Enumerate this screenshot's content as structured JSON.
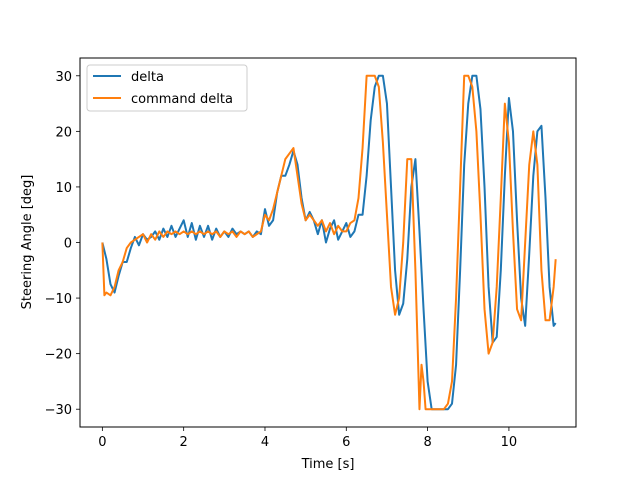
{
  "chart_data": {
    "type": "line",
    "title": "",
    "xlabel": "Time [s]",
    "ylabel": "Steering Angle [deg]",
    "xlim": [
      -0.55,
      11.65
    ],
    "ylim": [
      -33.2,
      33.2
    ],
    "xticks": [
      0,
      2,
      4,
      6,
      8,
      10
    ],
    "yticks": [
      -30,
      -20,
      -10,
      0,
      10,
      20,
      30
    ],
    "legend_position": "top-left",
    "grid": false,
    "series": [
      {
        "name": "delta",
        "color": "#1f77b4",
        "x": [
          0,
          0.1,
          0.2,
          0.3,
          0.4,
          0.5,
          0.6,
          0.7,
          0.8,
          0.9,
          1.0,
          1.1,
          1.2,
          1.3,
          1.4,
          1.5,
          1.6,
          1.7,
          1.8,
          1.9,
          2.0,
          2.1,
          2.2,
          2.3,
          2.4,
          2.5,
          2.6,
          2.7,
          2.8,
          2.9,
          3.0,
          3.1,
          3.2,
          3.3,
          3.4,
          3.5,
          3.6,
          3.7,
          3.8,
          3.9,
          4.0,
          4.1,
          4.2,
          4.3,
          4.4,
          4.5,
          4.6,
          4.7,
          4.8,
          4.9,
          5.0,
          5.1,
          5.2,
          5.3,
          5.4,
          5.5,
          5.6,
          5.7,
          5.8,
          5.9,
          6.0,
          6.1,
          6.2,
          6.3,
          6.4,
          6.5,
          6.6,
          6.7,
          6.8,
          6.9,
          7.0,
          7.1,
          7.2,
          7.3,
          7.4,
          7.5,
          7.6,
          7.7,
          7.8,
          7.9,
          8.0,
          8.1,
          8.2,
          8.3,
          8.4,
          8.5,
          8.6,
          8.7,
          8.8,
          8.9,
          9.0,
          9.1,
          9.2,
          9.3,
          9.4,
          9.5,
          9.6,
          9.7,
          9.8,
          9.9,
          10.0,
          10.1,
          10.2,
          10.3,
          10.4,
          10.5,
          10.6,
          10.7,
          10.8,
          10.9,
          11.0,
          11.1,
          11.15
        ],
        "y": [
          0,
          -3,
          -7.5,
          -9,
          -6,
          -3.5,
          -3.5,
          -1,
          1,
          -0.5,
          1.5,
          0.5,
          1,
          2,
          0.5,
          2.5,
          1,
          3,
          1,
          2.5,
          4,
          1,
          3.5,
          0.5,
          3,
          1,
          3,
          0.5,
          2.5,
          1,
          2,
          1,
          2.5,
          1.5,
          2,
          1.5,
          2,
          1,
          2,
          1.5,
          6,
          3,
          4,
          9,
          12,
          12,
          14,
          16.5,
          14,
          8,
          4,
          5.5,
          4,
          1.5,
          4,
          0,
          2.5,
          4,
          0.5,
          2,
          3.5,
          1,
          2,
          5,
          5,
          12,
          22,
          28,
          30,
          30,
          25,
          10,
          -5,
          -13,
          -11,
          -3,
          10,
          15,
          2,
          -12,
          -25,
          -30,
          -30,
          -30,
          -30,
          -30,
          -29,
          -22,
          -5,
          14,
          25,
          30,
          30,
          24,
          10,
          -8,
          -18,
          -17,
          -5,
          12,
          26,
          20,
          4,
          -10,
          -15,
          -2,
          12,
          20,
          21,
          8,
          -8,
          -15,
          -14.5
        ]
      },
      {
        "name": "command delta",
        "color": "#ff7f0e",
        "x": [
          0,
          0.05,
          0.1,
          0.2,
          0.3,
          0.4,
          0.5,
          0.6,
          0.7,
          0.8,
          0.9,
          1.0,
          1.1,
          1.2,
          1.3,
          1.4,
          1.5,
          1.6,
          1.7,
          1.8,
          1.9,
          2.0,
          2.1,
          2.2,
          2.3,
          2.4,
          2.5,
          2.6,
          2.7,
          2.8,
          2.9,
          3.0,
          3.1,
          3.2,
          3.3,
          3.4,
          3.5,
          3.6,
          3.7,
          3.8,
          3.9,
          4.0,
          4.1,
          4.2,
          4.3,
          4.4,
          4.5,
          4.6,
          4.7,
          4.8,
          4.9,
          5.0,
          5.1,
          5.2,
          5.3,
          5.4,
          5.5,
          5.6,
          5.7,
          5.8,
          5.9,
          6.0,
          6.1,
          6.2,
          6.3,
          6.4,
          6.5,
          6.6,
          6.7,
          6.8,
          6.9,
          7.0,
          7.1,
          7.2,
          7.3,
          7.4,
          7.5,
          7.6,
          7.7,
          7.8,
          7.85,
          7.9,
          7.95,
          8.0,
          8.1,
          8.2,
          8.3,
          8.4,
          8.5,
          8.6,
          8.7,
          8.8,
          8.9,
          9.0,
          9.1,
          9.2,
          9.3,
          9.4,
          9.5,
          9.6,
          9.7,
          9.8,
          9.9,
          10.0,
          10.1,
          10.2,
          10.3,
          10.4,
          10.5,
          10.6,
          10.7,
          10.8,
          10.9,
          11.0,
          11.1,
          11.15
        ],
        "y": [
          0,
          -9.5,
          -9,
          -9.5,
          -8,
          -5,
          -3.5,
          -1,
          0,
          0.5,
          1,
          1.5,
          0,
          1.5,
          0.5,
          2,
          1,
          2,
          1.5,
          2,
          1.5,
          2,
          1.5,
          2,
          1.5,
          2,
          1.5,
          2,
          1.5,
          2,
          1,
          2,
          1.5,
          2,
          1,
          2,
          1.5,
          2,
          1,
          1.5,
          2,
          5,
          4,
          6,
          9,
          12,
          15,
          16,
          17,
          12,
          7,
          4,
          5,
          4,
          3,
          4,
          2,
          3.5,
          1.5,
          3,
          2,
          2,
          3.5,
          4,
          8,
          17,
          30,
          30,
          30,
          28,
          18,
          5,
          -8,
          -13,
          -10,
          0,
          15,
          15,
          -5,
          -30,
          -22,
          -25,
          -30,
          -30,
          -30,
          -30,
          -30,
          -30,
          -29,
          -25,
          -10,
          10,
          30,
          30,
          28,
          20,
          5,
          -12,
          -20,
          -18,
          -8,
          8,
          25,
          18,
          2,
          -12,
          -14,
          0,
          14,
          20,
          14,
          -5,
          -14,
          -14,
          -8,
          -3
        ]
      }
    ]
  }
}
